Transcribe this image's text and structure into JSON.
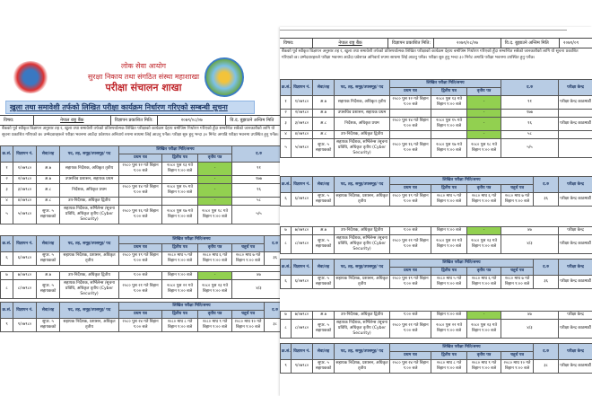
{
  "header": {
    "org1": "लोक सेवा आयोग",
    "org2": "सुरक्षा निकाय तथा संगठित संस्था महाशाखा",
    "org3": "परीक्षा संचालन शाखा",
    "title": "खुला तथा समावेशी तर्फको लिखित परीक्षा कार्यक्रम निर्धारण गरिएको सम्बन्धी सूचना"
  },
  "info": {
    "subject_label": "विषय:",
    "subject": "नेपाल राष्ट्र बैंक",
    "date_label": "विज्ञापन प्रकाशित मिति:",
    "date": "२०७९/०८/०७",
    "last_label": "वि.द. बुझाउने अन्तिम मिति",
    "last": "२०७९/०९"
  },
  "notice": "बैंकको पूर्व स्वीकृत विज्ञापन अनुसार तह र, खुला तथा समावेशी तर्फको प्रतिस्पर्धात्मक लिखित परीक्षाको कार्यक्रम देहाय बमोजिम निर्धारण गरिएको हुँदा सम्बन्धित सबैको जानकारीको लागि यो सूचना प्रकाशित गरिएको छ। उम्मेदवारहरुले परीक्षा भवनमा आउँदा प्रवेशपत्र अनिवार्य रुपमा साथमा लिई आउनु पर्नेछ। परीक्षा सुरु हुनु भन्दा ३० मिनेट अगाडि परीक्षा भवनमा उपस्थित हुनु पर्नेछ।",
  "cols": {
    "sn": "क्र.सं.",
    "ad": "विज्ञापन नं.",
    "level": "सेवा/तह",
    "post": "पद, तह, समूह/उपसमूह/ पद",
    "sched": "लिखित परीक्षा मिति/समय",
    "p1": "प्रथम पत्र",
    "p2": "द्वितीय पत्र",
    "p3": "तृतीय पत्र",
    "p4": "चतुर्थ पत्र",
    "code": "द.रु",
    "venue": "परीक्षा केन्द्र"
  },
  "rows": [
    {
      "sn": "१",
      "ad": "१/०७९८०",
      "level": "अ.७",
      "post": "सहायक निर्देशक, अधिकृत तृतीय",
      "p1": "२०८० पुस १२ गते बिहान ९:०० बजे",
      "p2": "२०८० पुस १३ गते बिहान ९:०० बजे",
      "p3": "-",
      "code": "९१",
      "venue": "परीक्षा केन्द्र काठमाडौं"
    },
    {
      "sn": "२",
      "ad": "२/०७९८०",
      "level": "अ.७",
      "post": "उपसचिव प्रशासन, सहायक प्रथम",
      "p1": "",
      "p2": "",
      "p3": "-",
      "code": "१७७",
      "venue": ""
    },
    {
      "sn": "३",
      "ad": "३/०७९८०",
      "level": "अ.८",
      "post": "निर्देशक, अधिकृत प्रथम",
      "p1": "२०८० पुस १४ गते बिहान ९:०० बजे",
      "p2": "२०८० पुस १५ गते बिहान ९:०० बजे",
      "p3": "-",
      "code": "१६",
      "venue": "परीक्षा केन्द्र काठमाडौं"
    },
    {
      "sn": "४",
      "ad": "४/०७९८०",
      "level": "अ.८",
      "post": "उप-निर्देशक, अधिकृत द्वितीय",
      "p1": "",
      "p2": "",
      "p3": "-",
      "code": "५८",
      "venue": ""
    },
    {
      "sn": "५",
      "ad": "५/०७९८०",
      "level": "सुपर. ५ सहायकको",
      "post": "सहायक निर्देशक, सर्भिलेन्स /सूचना प्रविधि, अधिकृत तृतीय (Cyber Security)",
      "p1": "२०८० पुस १६ गते बिहान ९:०० बजे",
      "p2": "२०८० पुस १७ गते बिहान ९:०० बजे",
      "p3": "२०८० पुस १८ गते बिहान ९:०० बजे",
      "code": "५/५",
      "venue": ""
    },
    {
      "sn": "६",
      "ad": "६/०७९८०",
      "level": "सुपर. ५ सहायकको",
      "post": "सहायक निर्देशक, प्रशासन, अधिकृत तृतीय",
      "p1": "२०८० पुस १९ गते बिहान ९:०० बजे",
      "p2": "२०८० माघ ५ गते बिहान ९:०० बजे",
      "p3": "२०८० माघ ६ गते बिहान ९:०० बजे",
      "p4": "२०८० माघ ७ गते बिहान ९:०० बजे",
      "code": "३६",
      "venue": "परीक्षा केन्द्र काठमाडौं"
    },
    {
      "sn": "७",
      "ad": "७/०७९८०",
      "level": "अ.७",
      "post": "उप-निर्देशक, अधिकृत द्वितीय",
      "p1": "९:०० बजे",
      "p2": "बिहान ९:०० बजे",
      "p3": "-",
      "code": "४७",
      "venue": "परीक्षा केन्द्र"
    },
    {
      "sn": "८",
      "ad": "८/०७९८०",
      "level": "सुपर. ५ सहायकको",
      "post": "सहायक निर्देशक, सर्भिलेन्स /सूचना प्रविधि, अधिकृत तृतीय (Cyber Security)",
      "p1": "२०८० पुस २१ गते बिहान ९:०० बजे",
      "p2": "२०८० पुस २२ गते बिहान ९:०० बजे",
      "p3": "२०८० पुस २३ गते बिहान ९:०० बजे",
      "code": "४/३",
      "venue": "परीक्षा केन्द्र काठमाडौं"
    },
    {
      "sn": "९",
      "ad": "९/०७९८०",
      "level": "सुपर. ५ सहायकको",
      "post": "सहायक निर्देशक, प्रशासन, अधिकृत तृतीय",
      "p1": "२०८० पुस २४ गते बिहान ९:०० बजे",
      "p2": "२०८० माघ ८ गते बिहान ९:०० बजे",
      "p3": "२०८० माघ ९ गते बिहान ९:०० बजे",
      "p4": "२०८० माघ १० गते बिहान ९:०० बजे",
      "code": "३८",
      "venue": "परीक्षा केन्द्र काठमाडौं"
    }
  ]
}
